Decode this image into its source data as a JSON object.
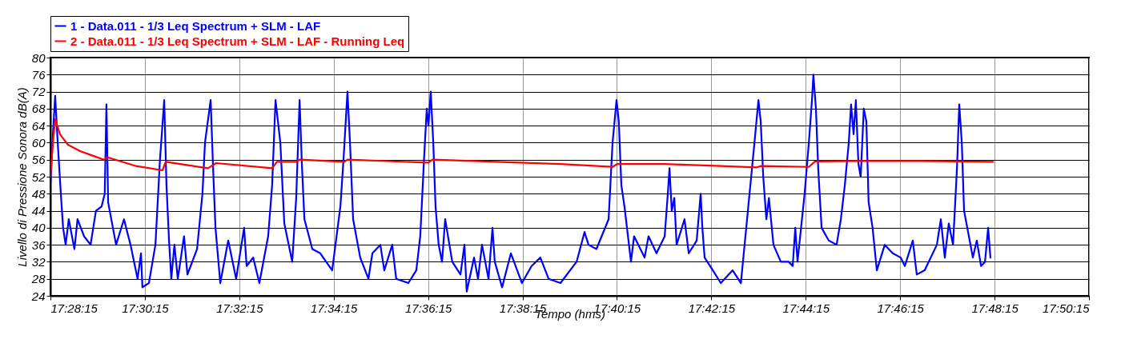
{
  "chart_data": {
    "type": "line",
    "xlabel": "Tempo (hms)",
    "ylabel": "Livello di Pressione Sonora dB(A)",
    "legend": "top",
    "grid": true,
    "marker": "none",
    "line_style": "solid",
    "xlim": [
      17.470833,
      17.8375
    ],
    "ylim": [
      24,
      80
    ],
    "xticks": [
      {
        "value": 17.470833,
        "label": "17:28:15"
      },
      {
        "value": 17.504167,
        "label": "17:30:15"
      },
      {
        "value": 17.5375,
        "label": "17:32:15"
      },
      {
        "value": 17.570833,
        "label": "17:34:15"
      },
      {
        "value": 17.604167,
        "label": "17:36:15"
      },
      {
        "value": 17.6375,
        "label": "17:38:15"
      },
      {
        "value": 17.670833,
        "label": "17:40:15"
      },
      {
        "value": 17.704167,
        "label": "17:42:15"
      },
      {
        "value": 17.7375,
        "label": "17:44:15"
      },
      {
        "value": 17.770833,
        "label": "17:46:15"
      },
      {
        "value": 17.804167,
        "label": "17:48:15"
      },
      {
        "value": 17.8375,
        "label": "17:50:15"
      }
    ],
    "yticks": [
      24,
      28,
      32,
      36,
      40,
      44,
      48,
      52,
      56,
      60,
      64,
      68,
      72,
      76,
      80
    ],
    "series": [
      {
        "name": "1 - Data.011 - 1/3 Leq Spectrum + SLM - LAF",
        "color": "#0000ff",
        "x": [
          17.470833,
          17.4717,
          17.4725,
          17.4734,
          17.4745,
          17.4753,
          17.4762,
          17.4773,
          17.4793,
          17.4804,
          17.4827,
          17.485,
          17.4869,
          17.4889,
          17.49,
          17.4906,
          17.4912,
          17.494,
          17.4968,
          17.4991,
          17.5016,
          17.5028,
          17.5033,
          17.5056,
          17.5079,
          17.5095,
          17.511,
          17.5118,
          17.5127,
          17.5135,
          17.5146,
          17.5158,
          17.518,
          17.5192,
          17.5226,
          17.5245,
          17.5254,
          17.5274,
          17.5282,
          17.5291,
          17.5308,
          17.5336,
          17.5364,
          17.5392,
          17.5401,
          17.5424,
          17.5446,
          17.5477,
          17.5491,
          17.5503,
          17.552,
          17.5534,
          17.5562,
          17.5576,
          17.5588,
          17.5596,
          17.5605,
          17.5633,
          17.5661,
          17.5703,
          17.5732,
          17.5743,
          17.5757,
          17.5766,
          17.5777,
          17.5802,
          17.5831,
          17.5845,
          17.5873,
          17.5887,
          17.5915,
          17.5929,
          17.5972,
          17.6,
          17.6014,
          17.6028,
          17.6037,
          17.6043,
          17.6051,
          17.606,
          17.6068,
          17.6079,
          17.6091,
          17.6102,
          17.6127,
          17.6156,
          17.617,
          17.6178,
          17.6204,
          17.6218,
          17.6232,
          17.6255,
          17.6269,
          17.6277,
          17.6303,
          17.6334,
          17.6373,
          17.6407,
          17.6438,
          17.6467,
          17.6509,
          17.6566,
          17.6594,
          17.6608,
          17.6636,
          17.6679,
          17.6693,
          17.6707,
          17.6715,
          17.6724,
          17.6735,
          17.6758,
          17.6769,
          17.6806,
          17.682,
          17.6848,
          17.6877,
          17.6888,
          17.6894,
          17.6902,
          17.6911,
          17.6919,
          17.6947,
          17.6962,
          17.699,
          17.7004,
          17.701,
          17.7018,
          17.7047,
          17.7075,
          17.7117,
          17.7146,
          17.7165,
          17.7194,
          17.7208,
          17.7216,
          17.7225,
          17.7236,
          17.7245,
          17.7261,
          17.7287,
          17.7315,
          17.7329,
          17.7338,
          17.7346,
          17.7371,
          17.7386,
          17.7397,
          17.7402,
          17.7411,
          17.7419,
          17.7431,
          17.7456,
          17.7484,
          17.7499,
          17.7513,
          17.7527,
          17.7535,
          17.7544,
          17.7552,
          17.7561,
          17.7569,
          17.758,
          17.7589,
          17.7597,
          17.7611,
          17.7626,
          17.7654,
          17.7682,
          17.771,
          17.7725,
          17.7753,
          17.7767,
          17.7795,
          17.7838,
          17.7852,
          17.7866,
          17.788,
          17.7895,
          17.7909,
          17.7917,
          17.7926,
          17.7934,
          17.7951,
          17.7965,
          17.7979,
          17.7994,
          17.8008,
          17.8019,
          17.8027
        ],
        "values": [
          50,
          62,
          71,
          60,
          48,
          40,
          36,
          42,
          35,
          42,
          38,
          36,
          44,
          45,
          48,
          69,
          46,
          36,
          42,
          36,
          28,
          34,
          26,
          27,
          36,
          56,
          70,
          50,
          37,
          28,
          36,
          28,
          38,
          29,
          35,
          48,
          60,
          70,
          55,
          40,
          27,
          37,
          28,
          40,
          31,
          33,
          27,
          38,
          50,
          70,
          60,
          41,
          32,
          47,
          70,
          55,
          42,
          35,
          34,
          30,
          45,
          56,
          72,
          60,
          42,
          33,
          28,
          34,
          36,
          30,
          36,
          28,
          27,
          30,
          38,
          57,
          68,
          64,
          72,
          60,
          45,
          36,
          32,
          42,
          32,
          29,
          36,
          25,
          33,
          28,
          36,
          28,
          40,
          32,
          26,
          34,
          27,
          31,
          33,
          28,
          27,
          32,
          39,
          36,
          35,
          42,
          60,
          70,
          65,
          50,
          45,
          32,
          38,
          33,
          38,
          34,
          38,
          48,
          54,
          44,
          47,
          36,
          42,
          34,
          37,
          48,
          40,
          33,
          30,
          27,
          30,
          27,
          40,
          60,
          70,
          65,
          52,
          42,
          47,
          36,
          32,
          32,
          31,
          40,
          32,
          48,
          60,
          70,
          76,
          68,
          54,
          40,
          37,
          36,
          42,
          50,
          60,
          69,
          62,
          70,
          55,
          52,
          68,
          65,
          46,
          40,
          30,
          36,
          34,
          33,
          31,
          37,
          29,
          30,
          36,
          42,
          33,
          41,
          36,
          54,
          69,
          60,
          44,
          38,
          33,
          37,
          31,
          32,
          40,
          33
        ]
      },
      {
        "name": "2 - Data.011 - 1/3 Leq Spectrum + SLM - LAF - Running Leq",
        "color": "#ff0000",
        "x": [
          17.470833,
          17.4717,
          17.4725,
          17.4742,
          17.477,
          17.4813,
          17.4855,
          17.4897,
          17.4912,
          17.5011,
          17.5104,
          17.5115,
          17.5265,
          17.5293,
          17.5491,
          17.5508,
          17.5576,
          17.5588,
          17.5746,
          17.5757,
          17.6043,
          17.6057,
          17.6509,
          17.6693,
          17.671,
          17.6877,
          17.7075,
          17.7202,
          17.7216,
          17.7386,
          17.7408,
          17.7555,
          17.7781,
          17.8036
        ],
        "values": [
          52,
          60,
          65.5,
          62,
          59.5,
          58,
          57,
          56,
          56.5,
          54.5,
          53.5,
          55.5,
          54,
          55.2,
          54,
          55.5,
          55.5,
          56,
          55.5,
          56,
          55.3,
          56,
          55,
          54.3,
          55,
          55,
          54.5,
          54.2,
          54.5,
          54.3,
          55.6,
          55.7,
          55.7,
          55.5
        ]
      }
    ]
  }
}
